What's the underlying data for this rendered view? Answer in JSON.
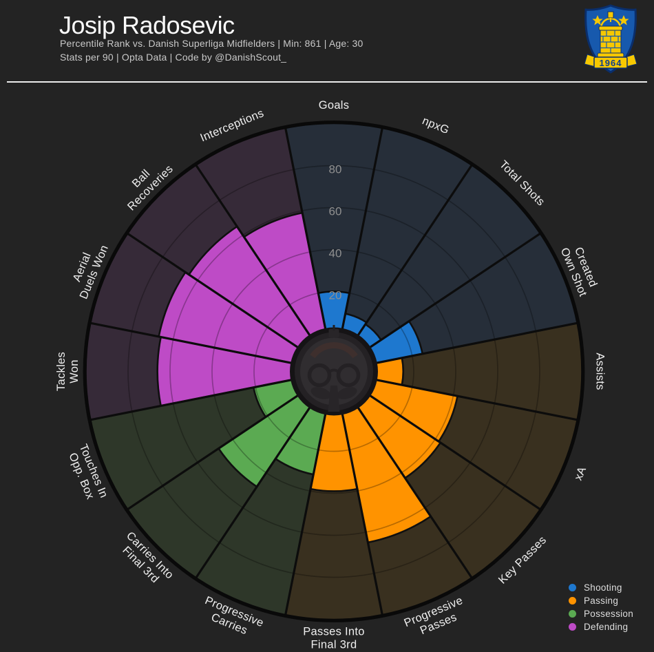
{
  "header": {
    "title": "Josip Radosevic",
    "subtitle_line1": "Percentile Rank vs. Danish Superliga Midfielders | Min: 861 | Age: 30",
    "subtitle_line2": "Stats per 90 | Opta Data | Code by @DanishScout_"
  },
  "logo": {
    "year": "1964"
  },
  "chart_data": {
    "type": "pizza",
    "unit": "percentile",
    "rlim": [
      0,
      100
    ],
    "ticks": [
      20,
      40,
      60,
      80
    ],
    "tick_color": "#8f8f8f",
    "label_color": "#efefef",
    "groups": [
      {
        "name": "Shooting",
        "color": "#1E78CF",
        "bg": "#262E39"
      },
      {
        "name": "Passing",
        "color": "#FF9300",
        "bg": "#39301F"
      },
      {
        "name": "Possession",
        "color": "#5BAA52",
        "bg": "#2E3729"
      },
      {
        "name": "Defending",
        "color": "#BE4BC6",
        "bg": "#362A38"
      }
    ],
    "slices": [
      {
        "label": "Goals",
        "lines": [
          "Goals"
        ],
        "group": "Shooting",
        "value": 20
      },
      {
        "label": "npxG",
        "lines": [
          "npxG"
        ],
        "group": "Shooting",
        "value": 10
      },
      {
        "label": "Total Shots",
        "lines": [
          "Total Shots"
        ],
        "group": "Shooting",
        "value": 9
      },
      {
        "label": "Created Own Shot",
        "lines": [
          "Created",
          "Own Shot"
        ],
        "group": "Shooting",
        "value": 25
      },
      {
        "label": "Assists",
        "lines": [
          "Assists"
        ],
        "group": "Passing",
        "value": 15
      },
      {
        "label": "xA",
        "lines": [
          "xA"
        ],
        "group": "Passing",
        "value": 42
      },
      {
        "label": "Key Passes",
        "lines": [
          "Key Passes"
        ],
        "group": "Passing",
        "value": 43
      },
      {
        "label": "Progressive Passes",
        "lines": [
          "Progressive",
          "Passes"
        ],
        "group": "Passing",
        "value": 65
      },
      {
        "label": "Passes Into Final 3rd",
        "lines": [
          "Passes Into",
          "Final 3rd"
        ],
        "group": "Passing",
        "value": 39
      },
      {
        "label": "Progressive Carries",
        "lines": [
          "Progressive",
          "Carries"
        ],
        "group": "Possession",
        "value": 32
      },
      {
        "label": "Carries Into Final 3rd",
        "lines": [
          "Carries Into",
          "Final 3rd"
        ],
        "group": "Possession",
        "value": 48
      },
      {
        "label": "Touches In Opp. Box",
        "lines": [
          "Touches In",
          "Opp. Box"
        ],
        "group": "Possession",
        "value": 21
      },
      {
        "label": "Tackles Won",
        "lines": [
          "Tackles",
          "Won"
        ],
        "group": "Defending",
        "value": 66
      },
      {
        "label": "Aerial Duels Won",
        "lines": [
          "Aerial",
          "Duels Won"
        ],
        "group": "Defending",
        "value": 67
      },
      {
        "label": "Ball Recoveries",
        "lines": [
          "Ball",
          "Recoveries"
        ],
        "group": "Defending",
        "value": 65
      },
      {
        "label": "Interceptions",
        "lines": [
          "Interceptions"
        ],
        "group": "Defending",
        "value": 59
      }
    ]
  }
}
